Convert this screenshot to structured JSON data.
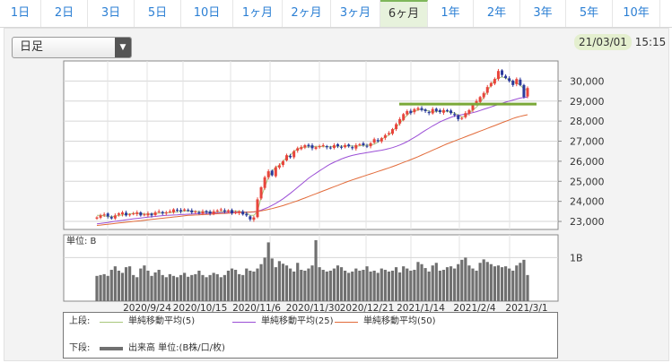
{
  "tabs": [
    {
      "label": "1日",
      "active": false
    },
    {
      "label": "2日",
      "active": false
    },
    {
      "label": "3日",
      "active": false
    },
    {
      "label": "5日",
      "active": false
    },
    {
      "label": "10日",
      "active": false
    },
    {
      "label": "1ヶ月",
      "active": false
    },
    {
      "label": "2ヶ月",
      "active": false
    },
    {
      "label": "3ヶ月",
      "active": false
    },
    {
      "label": "6ヶ月",
      "active": true
    },
    {
      "label": "1年",
      "active": false
    },
    {
      "label": "2年",
      "active": false
    },
    {
      "label": "3年",
      "active": false
    },
    {
      "label": "5年",
      "active": false
    },
    {
      "label": "10年",
      "active": false
    }
  ],
  "period_select": {
    "value": "日足"
  },
  "datetime": {
    "date": "21/03/01",
    "time": "15:15"
  },
  "colors": {
    "up": "#e8453c",
    "down": "#2b3a9c",
    "ma5": "#a8c77b",
    "ma25": "#9b4fd6",
    "ma50": "#e26b3a",
    "volume": "#707070",
    "hline": "#7aa838"
  },
  "chart_data": [
    {
      "type": "candlestick",
      "title": "",
      "y_ticks": [
        "30,000",
        "29,000",
        "28,000",
        "27,000",
        "26,000",
        "25,000",
        "24,000",
        "23,000"
      ],
      "ylim": [
        22600,
        31000
      ],
      "x_ticks": [
        "2020/9/24",
        "2020/10/15",
        "2020/11/6",
        "2020/11/30",
        "2020/12/21",
        "2021/1/14",
        "2021/2/4",
        "2021/3/1"
      ],
      "horizontal_line": 28850,
      "series": [
        {
          "name": "単純移動平均(5)",
          "values": [
            23300,
            23300,
            23280,
            23250,
            23230,
            23260,
            23300,
            23320,
            23340,
            23380,
            23400,
            23400,
            23390,
            23370,
            23360,
            23380,
            23400,
            23410,
            23420,
            23430,
            23440,
            23460,
            23480,
            23500,
            23520,
            23520,
            23510,
            23500,
            23490,
            23480,
            23470,
            23460,
            23450,
            23460,
            23480,
            23500,
            23520,
            23530,
            23520,
            23500,
            23470,
            23420,
            23300,
            23300,
            23500,
            24200,
            24700,
            25200,
            25500,
            25700,
            25800,
            26000,
            26200,
            26300,
            26500,
            26600,
            26700,
            26700,
            26720,
            26730,
            26740,
            26740,
            26730,
            26720,
            26730,
            26740,
            26740,
            26750,
            26760,
            26770,
            26760,
            26750,
            26770,
            26790,
            26800,
            26820,
            26850,
            26950,
            27100,
            27200,
            27300,
            27500,
            27700,
            27900,
            28100,
            28300,
            28450,
            28500,
            28550,
            28600,
            28550,
            28500,
            28450,
            28480,
            28500,
            28500,
            28480,
            28450,
            28400,
            28300,
            28200,
            28250,
            28400,
            28550,
            28700,
            28900,
            29200,
            29500,
            29800,
            30050,
            30150,
            30200,
            30150,
            30050,
            29950,
            29900,
            29800,
            29600,
            29550
          ]
        },
        {
          "name": "単純移動平均(25)",
          "values": [
            22880,
            22900,
            22920,
            22950,
            22980,
            23000,
            23030,
            23050,
            23080,
            23100,
            23130,
            23150,
            23170,
            23190,
            23210,
            23230,
            23250,
            23270,
            23290,
            23300,
            23310,
            23320,
            23330,
            23340,
            23350,
            23360,
            23370,
            23380,
            23390,
            23400,
            23400,
            23410,
            23420,
            23430,
            23440,
            23450,
            23450,
            23460,
            23460,
            23460,
            23460,
            23460,
            23460,
            23470,
            23500,
            23560,
            23630,
            23710,
            23800,
            23900,
            24010,
            24130,
            24260,
            24400,
            24550,
            24700,
            24850,
            25000,
            25150,
            25280,
            25400,
            25520,
            25640,
            25760,
            25860,
            25950,
            26030,
            26110,
            26180,
            26240,
            26290,
            26330,
            26370,
            26400,
            26430,
            26460,
            26490,
            26520,
            26550,
            26590,
            26630,
            26680,
            26740,
            26810,
            26890,
            26980,
            27080,
            27190,
            27300,
            27420,
            27540,
            27650,
            27760,
            27860,
            27960,
            28040,
            28120,
            28190,
            28250,
            28290,
            28320,
            28350,
            28380,
            28420,
            28470,
            28530,
            28590,
            28650,
            28710,
            28770,
            28830,
            28890,
            28950,
            29000,
            29050,
            29100,
            29150,
            29180,
            29200
          ]
        },
        {
          "name": "単純移動平均(50)",
          "values": [
            22800,
            22820,
            22840,
            22860,
            22880,
            22900,
            22920,
            22940,
            22960,
            22980,
            23000,
            23020,
            23040,
            23060,
            23080,
            23100,
            23120,
            23140,
            23160,
            23180,
            23200,
            23220,
            23240,
            23260,
            23280,
            23300,
            23310,
            23320,
            23330,
            23340,
            23350,
            23360,
            23370,
            23380,
            23390,
            23400,
            23410,
            23420,
            23430,
            23440,
            23450,
            23460,
            23470,
            23480,
            23500,
            23530,
            23560,
            23600,
            23640,
            23690,
            23740,
            23790,
            23850,
            23910,
            23970,
            24030,
            24100,
            24170,
            24240,
            24310,
            24380,
            24450,
            24520,
            24590,
            24660,
            24730,
            24800,
            24870,
            24940,
            25010,
            25070,
            25130,
            25190,
            25250,
            25310,
            25370,
            25430,
            25490,
            25550,
            25610,
            25670,
            25730,
            25800,
            25870,
            25940,
            26010,
            26080,
            26150,
            26230,
            26310,
            26390,
            26470,
            26550,
            26630,
            26710,
            26790,
            26870,
            26940,
            27010,
            27080,
            27150,
            27220,
            27290,
            27360,
            27430,
            27500,
            27570,
            27640,
            27710,
            27780,
            27850,
            27920,
            27990,
            28060,
            28130,
            28190,
            28240,
            28280,
            28320
          ]
        },
        {
          "name": "close",
          "values": [
            23200,
            23300,
            23350,
            23250,
            23150,
            23300,
            23400,
            23450,
            23300,
            23350,
            23400,
            23450,
            23300,
            23350,
            23400,
            23300,
            23450,
            23500,
            23400,
            23450,
            23500,
            23600,
            23550,
            23500,
            23600,
            23550,
            23450,
            23500,
            23400,
            23500,
            23450,
            23400,
            23500,
            23550,
            23600,
            23500,
            23550,
            23400,
            23450,
            23500,
            23350,
            23300,
            23100,
            23200,
            24100,
            24700,
            25200,
            25500,
            25300,
            25700,
            25800,
            26000,
            26300,
            26200,
            26500,
            26650,
            26700,
            26800,
            26750,
            26650,
            26700,
            26750,
            26800,
            26700,
            26650,
            26800,
            26750,
            26700,
            26800,
            26750,
            26650,
            26800,
            26850,
            26800,
            26750,
            26900,
            27100,
            27000,
            27150,
            27300,
            27400,
            27600,
            27850,
            28100,
            28350,
            28500,
            28400,
            28600,
            28650,
            28550,
            28500,
            28400,
            28600,
            28500,
            28450,
            28550,
            28500,
            28400,
            28300,
            28100,
            28150,
            28400,
            28550,
            28800,
            29000,
            29200,
            29400,
            29700,
            29900,
            30100,
            30500,
            30300,
            30150,
            30000,
            29800,
            30100,
            29800,
            29200,
            29650
          ]
        }
      ],
      "volume": {
        "unit_label": "単位: B",
        "y_ticks": [
          "1B"
        ],
        "values": [
          0.58,
          0.6,
          0.62,
          0.58,
          0.72,
          0.8,
          0.7,
          0.65,
          0.78,
          0.8,
          0.6,
          0.55,
          0.75,
          0.82,
          0.7,
          0.58,
          0.66,
          0.72,
          0.6,
          0.55,
          0.62,
          0.58,
          0.55,
          0.6,
          0.65,
          0.56,
          0.6,
          0.62,
          0.7,
          0.6,
          0.55,
          0.6,
          0.65,
          0.62,
          0.55,
          0.6,
          0.7,
          0.75,
          0.72,
          0.62,
          0.6,
          0.75,
          0.7,
          0.68,
          0.75,
          0.85,
          1.0,
          1.35,
          0.98,
          0.78,
          0.92,
          0.86,
          0.82,
          0.75,
          0.68,
          0.88,
          0.72,
          0.7,
          0.75,
          0.82,
          1.4,
          0.78,
          0.72,
          0.68,
          0.7,
          0.75,
          0.82,
          0.78,
          0.7,
          0.65,
          0.68,
          0.75,
          0.7,
          0.72,
          0.8,
          0.68,
          0.7,
          0.65,
          0.75,
          0.72,
          0.68,
          0.7,
          0.78,
          0.66,
          0.8,
          0.75,
          0.7,
          0.72,
          0.9,
          0.85,
          0.76,
          0.68,
          0.82,
          0.88,
          0.7,
          0.72,
          0.78,
          0.8,
          0.75,
          0.85,
          0.95,
          1.0,
          0.82,
          0.75,
          0.7,
          0.88,
          0.96,
          0.9,
          0.85,
          0.8,
          0.82,
          0.78,
          0.8,
          0.75,
          0.7,
          0.82,
          0.88,
          0.95,
          0.6
        ]
      },
      "legend": [
        {
          "section": "上段:",
          "items": [
            "単純移動平均(5)",
            "単純移動平均(25)",
            "単純移動平均(50)"
          ]
        },
        {
          "section": "下段:",
          "items": [
            "出来高 単位:(B株/口/枚)"
          ]
        }
      ]
    }
  ]
}
